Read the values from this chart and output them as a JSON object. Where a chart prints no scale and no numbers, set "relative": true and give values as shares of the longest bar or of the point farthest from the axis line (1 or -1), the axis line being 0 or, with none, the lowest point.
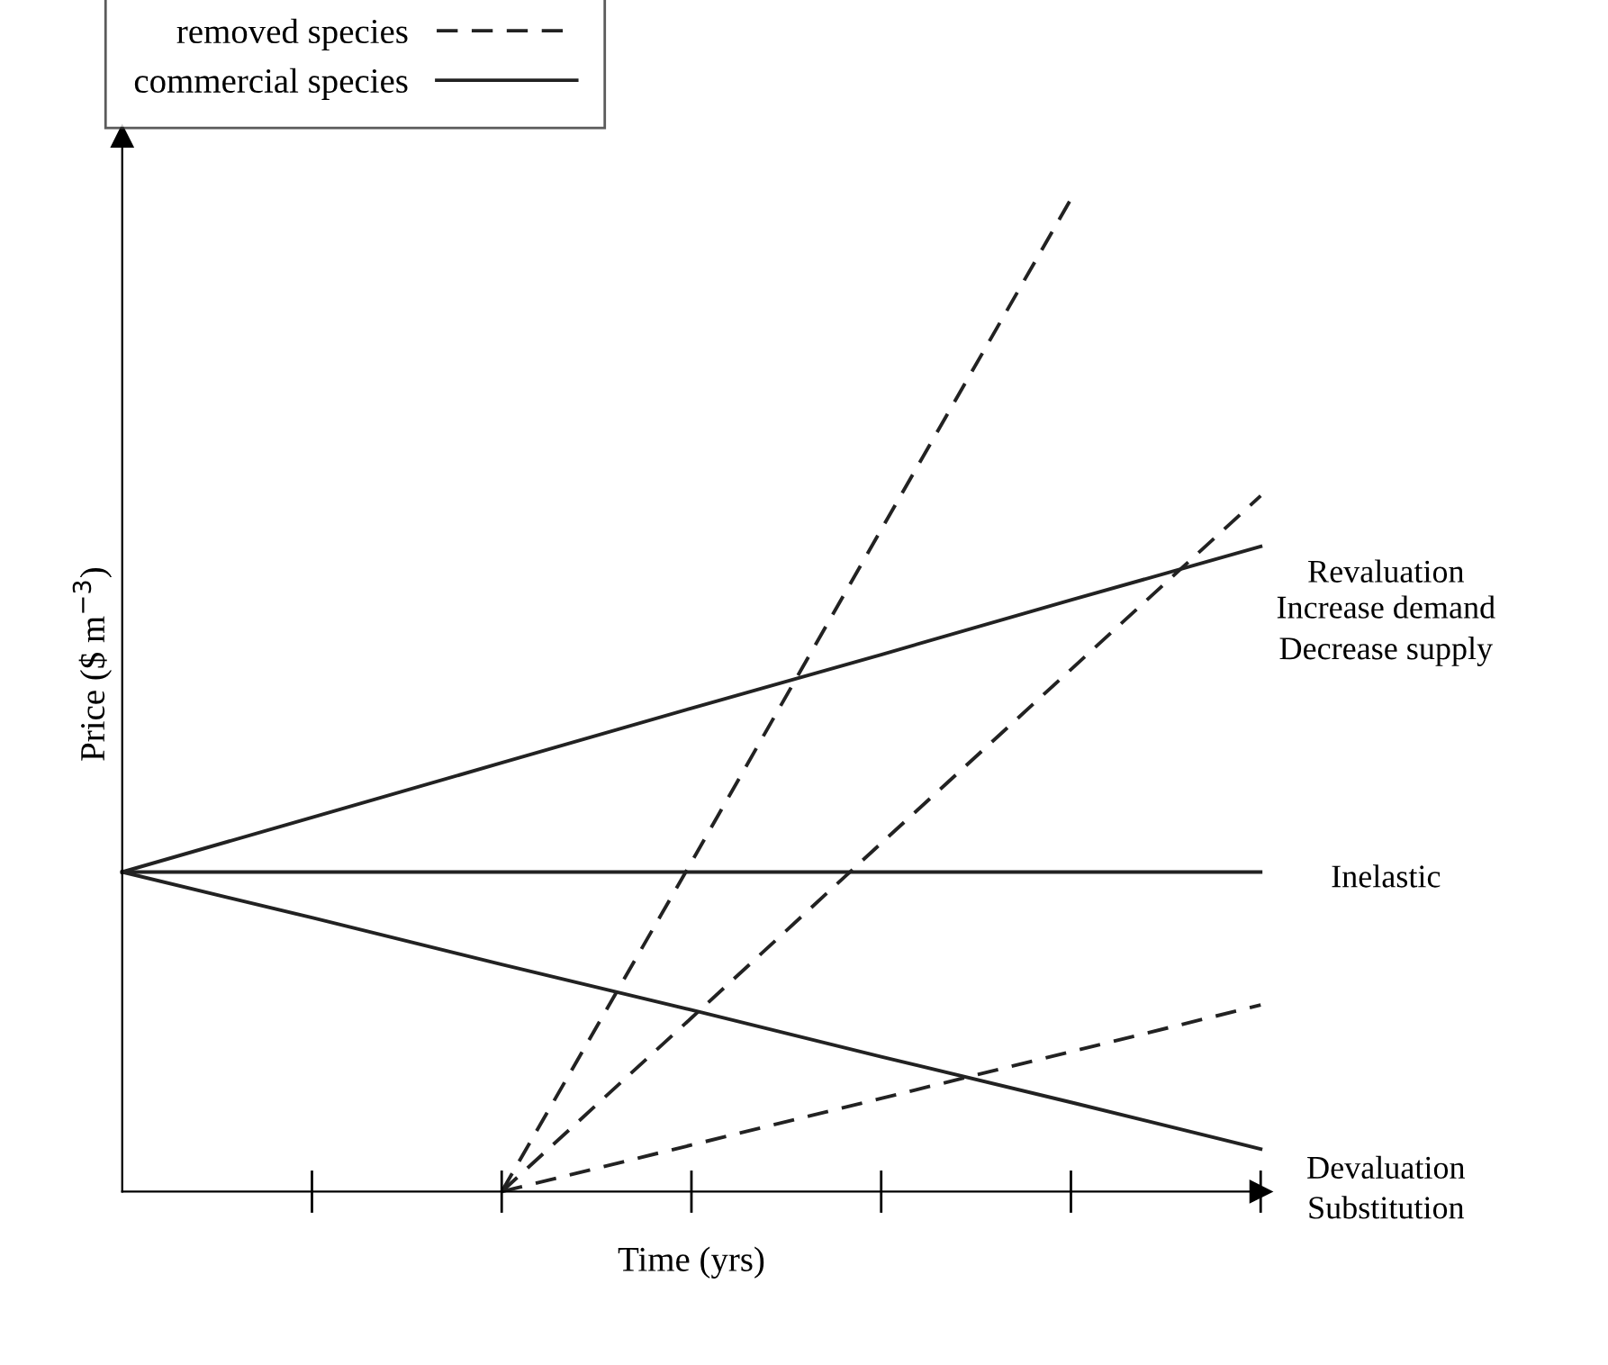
{
  "chart_data": {
    "type": "line",
    "relative": true,
    "xlabel": "Time (yrs)",
    "ylabel": "Price ($ m$^{−3}$)",
    "categories": [
      null,
      null,
      null,
      null,
      null,
      null,
      null
    ],
    "series": [
      {
        "name": "removed species",
        "color": "#222222",
        "line_style": "dashed",
        "values": [
          null,
          null,
          0,
          0.332,
          0.667,
          1.0,
          null
        ]
      },
      {
        "color": "#222222",
        "line_style": "dashed",
        "values": [
          null,
          null,
          0,
          0.175,
          0.351,
          0.526,
          0.701
        ]
      },
      {
        "color": "#222222",
        "line_style": "dashed",
        "values": [
          null,
          null,
          0,
          0.047,
          0.094,
          0.141,
          0.188
        ]
      },
      {
        "name": "commercial species",
        "color": "#222222",
        "line_style": "solid",
        "values": [
          0.322,
          0.377,
          0.432,
          0.487,
          0.541,
          0.596,
          0.65
        ]
      },
      {
        "color": "#222222",
        "line_style": "solid",
        "values": [
          0.322,
          0.322,
          0.322,
          0.322,
          0.322,
          0.322,
          0.322
        ]
      },
      {
        "color": "#222222",
        "line_style": "solid",
        "values": [
          0.322,
          0.276,
          0.229,
          0.183,
          0.136,
          0.09,
          0.043
        ]
      }
    ],
    "legend": "top left",
    "annotations": [
      "Revaluation",
      "Increase demand",
      "Decrease supply",
      "Inelastic",
      "Devaluation",
      "Substitution"
    ]
  }
}
